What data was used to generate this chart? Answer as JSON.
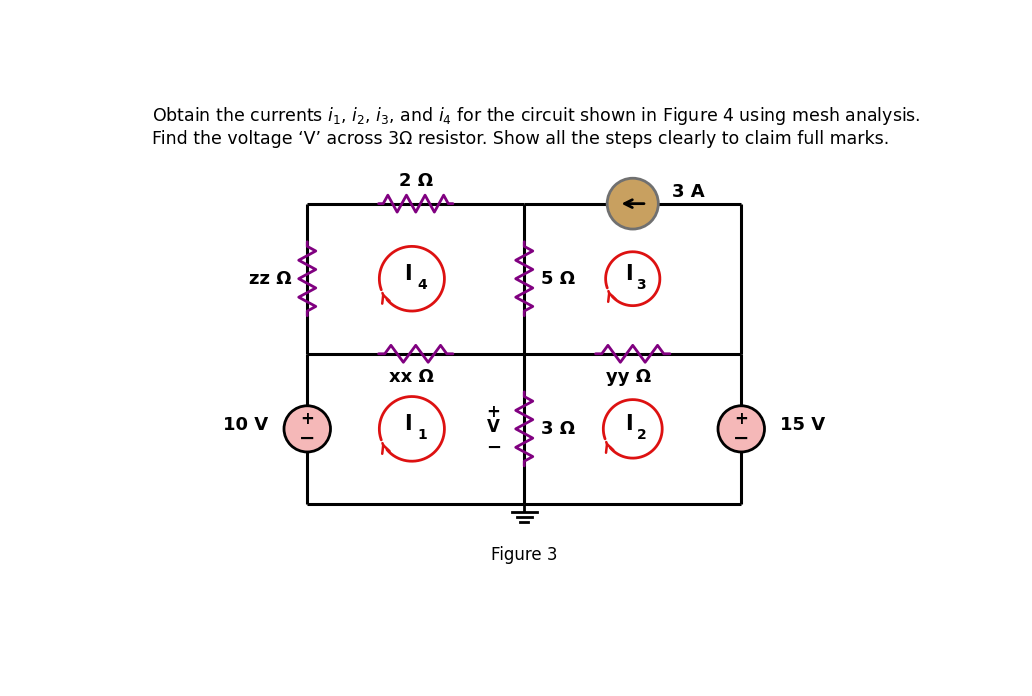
{
  "bg_color": "#ffffff",
  "circuit_line_color": "#000000",
  "resistor_color": "#800080",
  "mesh_arrow_color": "#dd1111",
  "voltage_source_color": "#f5b8b8",
  "current_source_color": "#c8a060",
  "res_2ohm": "2 Ω",
  "res_5ohm": "5 Ω",
  "res_3ohm": "3 Ω",
  "res_xx": "xx Ω",
  "res_yy": "yy Ω",
  "res_zz": "zz Ω",
  "label_3A": "3 A",
  "label_10V": "10 V",
  "label_15V": "15 V",
  "label_I1": "I",
  "label_I2": "I",
  "label_I3": "I",
  "label_I4": "I",
  "label_V": "V",
  "figure_label": "Figure 3",
  "L": 2.3,
  "M": 5.1,
  "R": 7.9,
  "T": 5.4,
  "Mh": 3.45,
  "B": 1.5
}
